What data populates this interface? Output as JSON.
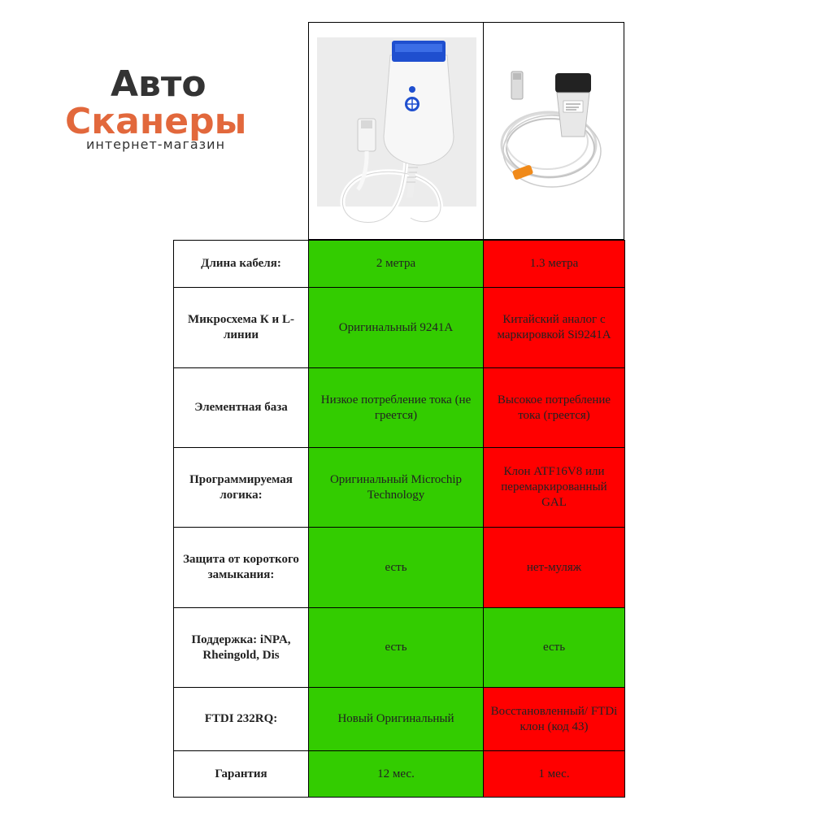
{
  "logo": {
    "line1": "Авто",
    "line2": "Сканеры",
    "line3": "интернет-магазин"
  },
  "colors": {
    "good": "#33cc00",
    "bad": "#ff0000",
    "logo_orange": "#e2683c",
    "logo_dark": "#333333"
  },
  "rows": [
    {
      "label": "Длина кабеля:",
      "left": "2 метра",
      "right": "1.3 метра",
      "right_status": "bad"
    },
    {
      "label": "Микросхема К и L-линии",
      "left": "Оригинальный  9241A",
      "right": "Китайский аналог с маркировкой Si9241A",
      "right_status": "bad"
    },
    {
      "label": "Элементная база",
      "left": "Низкое потребление тока (не греется)",
      "right": "Высокое потребление тока (греется)",
      "right_status": "bad"
    },
    {
      "label": "Программируемая логика:",
      "left": "Оригинальный Microchip Technology",
      "right": "Клон ATF16V8 или перемаркированный GAL",
      "right_status": "bad"
    },
    {
      "label": "Защита от короткого замыкания:",
      "left": "есть",
      "right": "нет-муляж",
      "right_status": "bad"
    },
    {
      "label": "Поддержка: iNPA, Rheingold, Dis",
      "left": "есть",
      "right": "есть",
      "right_status": "good"
    },
    {
      "label": "FTDI 232RQ:",
      "left": "Новый Оригинальный",
      "right": "Восстановленный/ FTDi клон (код 43)",
      "right_status": "bad"
    },
    {
      "label": "Гарантия",
      "left": "12 мес.",
      "right": "1 мес.",
      "right_status": "bad"
    }
  ]
}
